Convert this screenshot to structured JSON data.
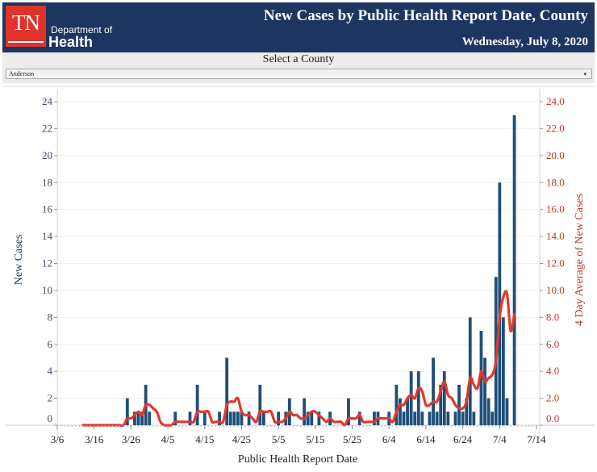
{
  "header": {
    "logo_mark": "TN",
    "logo_line1": "Department of",
    "logo_line2": "Health",
    "title": "New Cases by Public Health Report Date, County",
    "date": "Wednesday, July 8, 2020"
  },
  "filter": {
    "label": "Select a County",
    "selected": "Anderson",
    "arrow_icon": "▾"
  },
  "colors": {
    "header_bg": "#1d3660",
    "logo_red": "#e1332b",
    "bar": "#1f4e79",
    "line": "#e0392b",
    "right_axis_text": "#c0392b"
  },
  "chart_data": {
    "type": "bar",
    "title": "New Cases by Public Health Report Date, County",
    "xlabel": "Public Health Report Date",
    "ylabel": "New Cases",
    "ylabel_right": "4 Day Average of New Cases",
    "ylim": [
      0,
      24
    ],
    "ylim_right": [
      0,
      24
    ],
    "yticks": [
      "0",
      "2",
      "4",
      "6",
      "8",
      "10",
      "12",
      "14",
      "16",
      "18",
      "20",
      "22",
      "24"
    ],
    "yticks_right": [
      "0.0",
      "2.0",
      "4.0",
      "6.0",
      "8.0",
      "10.0",
      "12.0",
      "14.0",
      "16.0",
      "18.0",
      "20.0",
      "22.0",
      "24.0"
    ],
    "xticks": [
      "3/6",
      "3/16",
      "3/26",
      "4/5",
      "4/15",
      "4/25",
      "5/5",
      "5/15",
      "5/25",
      "6/4",
      "6/14",
      "6/24",
      "7/4",
      "7/14"
    ],
    "xrange": [
      "3/6",
      "7/14"
    ],
    "grid": true,
    "series": [
      {
        "name": "New Cases",
        "type": "bar",
        "points": [
          {
            "date": "3/25",
            "value": 2
          },
          {
            "date": "3/27",
            "value": 1
          },
          {
            "date": "3/28",
            "value": 1
          },
          {
            "date": "3/29",
            "value": 1
          },
          {
            "date": "3/30",
            "value": 3
          },
          {
            "date": "3/31",
            "value": 1
          },
          {
            "date": "4/7",
            "value": 1
          },
          {
            "date": "4/11",
            "value": 1
          },
          {
            "date": "4/13",
            "value": 3
          },
          {
            "date": "4/15",
            "value": 1
          },
          {
            "date": "4/19",
            "value": 1
          },
          {
            "date": "4/21",
            "value": 5
          },
          {
            "date": "4/22",
            "value": 1
          },
          {
            "date": "4/23",
            "value": 1
          },
          {
            "date": "4/24",
            "value": 1
          },
          {
            "date": "4/25",
            "value": 1
          },
          {
            "date": "4/27",
            "value": 1
          },
          {
            "date": "4/30",
            "value": 3
          },
          {
            "date": "5/1",
            "value": 1
          },
          {
            "date": "5/5",
            "value": 1
          },
          {
            "date": "5/7",
            "value": 1
          },
          {
            "date": "5/8",
            "value": 2
          },
          {
            "date": "5/12",
            "value": 2
          },
          {
            "date": "5/13",
            "value": 1
          },
          {
            "date": "5/14",
            "value": 1
          },
          {
            "date": "5/16",
            "value": 1
          },
          {
            "date": "5/19",
            "value": 1
          },
          {
            "date": "5/24",
            "value": 2
          },
          {
            "date": "5/27",
            "value": 1
          },
          {
            "date": "5/31",
            "value": 1
          },
          {
            "date": "6/1",
            "value": 1
          },
          {
            "date": "6/4",
            "value": 1
          },
          {
            "date": "6/6",
            "value": 3
          },
          {
            "date": "6/7",
            "value": 2
          },
          {
            "date": "6/8",
            "value": 1
          },
          {
            "date": "6/9",
            "value": 2
          },
          {
            "date": "6/10",
            "value": 4
          },
          {
            "date": "6/11",
            "value": 1
          },
          {
            "date": "6/12",
            "value": 4
          },
          {
            "date": "6/13",
            "value": 1
          },
          {
            "date": "6/15",
            "value": 1
          },
          {
            "date": "6/16",
            "value": 5
          },
          {
            "date": "6/17",
            "value": 1
          },
          {
            "date": "6/18",
            "value": 3
          },
          {
            "date": "6/19",
            "value": 4
          },
          {
            "date": "6/20",
            "value": 1
          },
          {
            "date": "6/22",
            "value": 1
          },
          {
            "date": "6/23",
            "value": 3
          },
          {
            "date": "6/24",
            "value": 1
          },
          {
            "date": "6/25",
            "value": 2
          },
          {
            "date": "6/26",
            "value": 8
          },
          {
            "date": "6/27",
            "value": 1
          },
          {
            "date": "6/29",
            "value": 7
          },
          {
            "date": "6/30",
            "value": 5
          },
          {
            "date": "7/1",
            "value": 2
          },
          {
            "date": "7/2",
            "value": 1
          },
          {
            "date": "7/3",
            "value": 11
          },
          {
            "date": "7/4",
            "value": 18
          },
          {
            "date": "7/5",
            "value": 8
          },
          {
            "date": "7/6",
            "value": 2
          },
          {
            "date": "7/8",
            "value": 23
          }
        ]
      },
      {
        "name": "4 Day Average of New Cases",
        "type": "line",
        "window_days": 4,
        "start_date": "3/13",
        "end_date": "7/8",
        "note": "rolling 4-day mean of New Cases"
      }
    ]
  }
}
